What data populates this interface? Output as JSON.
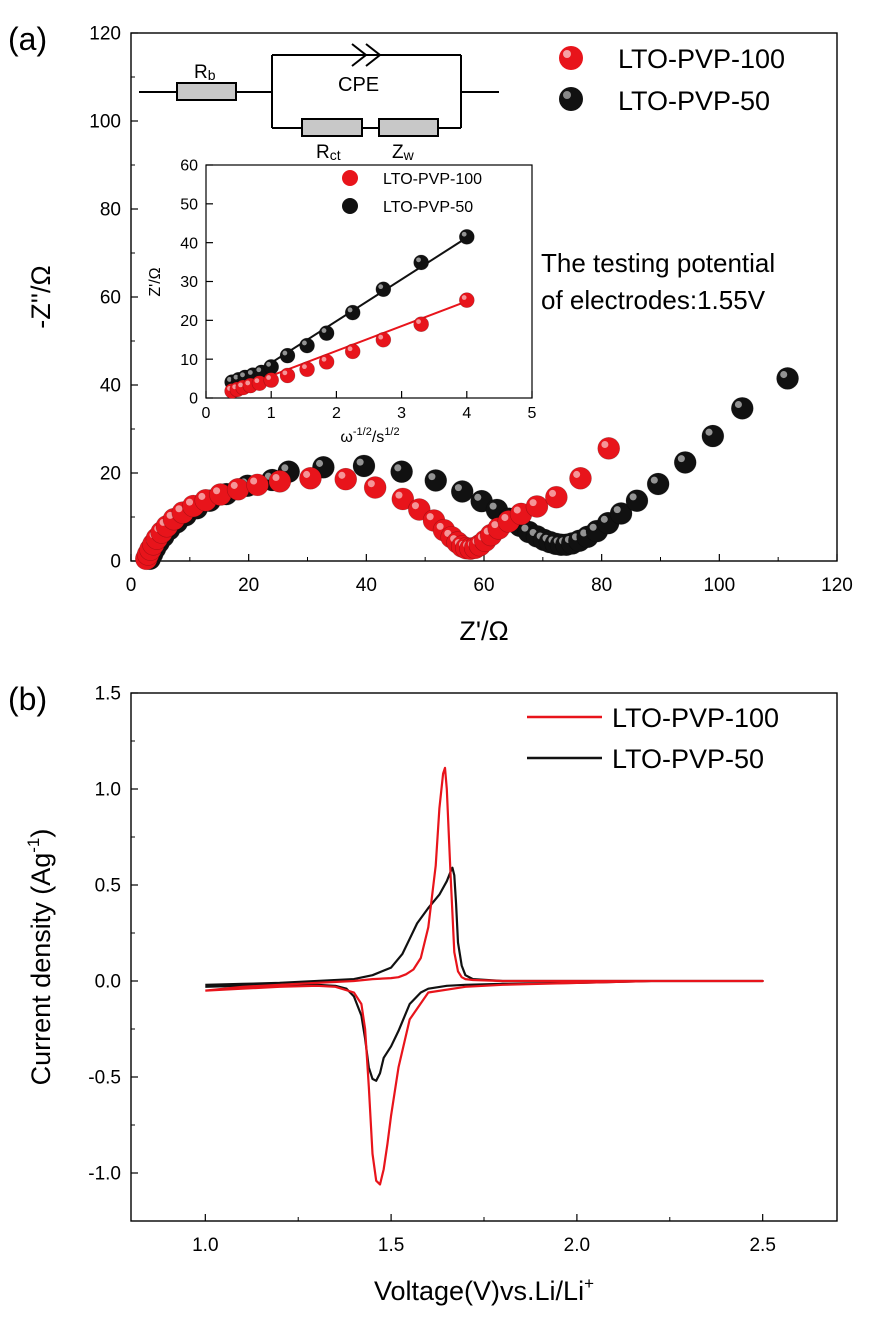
{
  "colors": {
    "red": "#e8141b",
    "black": "#111111",
    "circuit_fill": "#c8c8c8"
  },
  "panel_a": {
    "label": "(a)",
    "note_line1": "The testing potential",
    "note_line2": "of electrodes:1.55V",
    "circuit": {
      "rb": "R",
      "rb_sub": "b",
      "cpe": "CPE",
      "rct": "R",
      "rct_sub": "ct",
      "zw": "Z",
      "zw_sub": "w"
    }
  },
  "panel_b": {
    "label": "(b)"
  },
  "chart_data": [
    {
      "id": "nyquist",
      "type": "scatter",
      "title": "",
      "xlabel": "Z'/Ω",
      "ylabel": "-Z''/Ω",
      "xlim": [
        0,
        120
      ],
      "ylim": [
        0,
        120
      ],
      "xticks": [
        0,
        20,
        40,
        60,
        80,
        100,
        120
      ],
      "yticks": [
        0,
        20,
        40,
        60,
        80,
        100,
        120
      ],
      "xtick_labels": [
        "0",
        "20",
        "40",
        "60",
        "80",
        "100",
        "120"
      ],
      "ytick_labels": [
        "0",
        "20",
        "40",
        "60",
        "80",
        "100",
        "120"
      ],
      "legend": "top-right",
      "series": [
        {
          "name": "LTO-PVP-100",
          "color": "#e8141b",
          "points": [
            [
              2.6,
              0.5
            ],
            [
              2.9,
              1.5
            ],
            [
              3.3,
              2.6
            ],
            [
              3.8,
              3.8
            ],
            [
              4.4,
              5.1
            ],
            [
              5.2,
              6.5
            ],
            [
              6.1,
              7.9
            ],
            [
              7.3,
              9.5
            ],
            [
              8.8,
              11.0
            ],
            [
              10.6,
              12.5
            ],
            [
              12.7,
              13.8
            ],
            [
              15.2,
              15.1
            ],
            [
              18.2,
              16.3
            ],
            [
              21.5,
              17.3
            ],
            [
              25.3,
              18.1
            ],
            [
              30.5,
              18.8
            ],
            [
              36.5,
              18.6
            ],
            [
              41.5,
              16.7
            ],
            [
              46.2,
              14.1
            ],
            [
              49.0,
              11.7
            ],
            [
              51.5,
              9.2
            ],
            [
              53.2,
              7.0
            ],
            [
              54.5,
              5.4
            ],
            [
              55.5,
              4.2
            ],
            [
              56.3,
              3.3
            ],
            [
              57.0,
              2.9
            ],
            [
              57.7,
              2.8
            ],
            [
              58.5,
              3.0
            ],
            [
              59.3,
              3.6
            ],
            [
              60.2,
              4.6
            ],
            [
              61.2,
              5.9
            ],
            [
              62.5,
              7.4
            ],
            [
              64.2,
              9.0
            ],
            [
              66.3,
              10.7
            ],
            [
              69.0,
              12.4
            ],
            [
              72.3,
              14.5
            ],
            [
              76.4,
              18.8
            ],
            [
              81.2,
              25.6
            ]
          ]
        },
        {
          "name": "LTO-PVP-50",
          "color": "#111111",
          "points": [
            [
              3.2,
              0.5
            ],
            [
              3.6,
              1.6
            ],
            [
              4.1,
              2.9
            ],
            [
              4.7,
              4.2
            ],
            [
              5.5,
              5.6
            ],
            [
              6.5,
              7.2
            ],
            [
              7.8,
              8.8
            ],
            [
              9.3,
              10.4
            ],
            [
              11.2,
              12.0
            ],
            [
              13.4,
              13.7
            ],
            [
              16.2,
              15.2
            ],
            [
              19.8,
              17.1
            ],
            [
              24.0,
              18.4
            ],
            [
              26.8,
              20.3
            ],
            [
              32.7,
              21.3
            ],
            [
              39.6,
              21.6
            ],
            [
              46.0,
              20.3
            ],
            [
              51.8,
              18.3
            ],
            [
              56.3,
              15.8
            ],
            [
              59.6,
              13.6
            ],
            [
              62.2,
              11.6
            ],
            [
              64.3,
              9.6
            ],
            [
              66.1,
              8.0
            ],
            [
              67.6,
              6.6
            ],
            [
              69.0,
              5.6
            ],
            [
              70.2,
              4.8
            ],
            [
              71.2,
              4.3
            ],
            [
              72.2,
              3.9
            ],
            [
              73.1,
              3.7
            ],
            [
              74.0,
              3.7
            ],
            [
              75.0,
              4.0
            ],
            [
              76.2,
              4.6
            ],
            [
              77.6,
              5.5
            ],
            [
              79.2,
              6.8
            ],
            [
              81.1,
              8.6
            ],
            [
              83.3,
              10.8
            ],
            [
              86.0,
              13.7
            ],
            [
              89.6,
              17.5
            ],
            [
              94.2,
              22.4
            ],
            [
              98.9,
              28.4
            ],
            [
              103.9,
              34.7
            ],
            [
              111.6,
              41.5
            ]
          ]
        }
      ]
    },
    {
      "id": "inset",
      "type": "scatter",
      "title": "",
      "xlabel": "ω",
      "xlabel_sup1": "-1/2",
      "xlabel_mid": "/s",
      "xlabel_sup2": "1/2",
      "ylabel": "Z'/Ω",
      "xlim": [
        0,
        5
      ],
      "ylim": [
        0,
        60
      ],
      "xticks": [
        0,
        1,
        2,
        3,
        4,
        5
      ],
      "yticks": [
        0,
        10,
        20,
        30,
        40,
        50,
        60
      ],
      "xtick_labels": [
        "0",
        "1",
        "2",
        "3",
        "4",
        "5"
      ],
      "ytick_labels": [
        "0",
        "10",
        "20",
        "30",
        "40",
        "50",
        "60"
      ],
      "legend": "top-right",
      "series": [
        {
          "name": "LTO-PVP-100",
          "color": "#e8141b",
          "points": [
            [
              0.4,
              1.8
            ],
            [
              0.48,
              2.2
            ],
            [
              0.57,
              2.7
            ],
            [
              0.68,
              3.2
            ],
            [
              0.82,
              3.8
            ],
            [
              1.0,
              4.6
            ],
            [
              1.25,
              5.8
            ],
            [
              1.55,
              7.4
            ],
            [
              1.85,
              9.3
            ],
            [
              2.25,
              12.0
            ],
            [
              2.72,
              15.0
            ],
            [
              3.3,
              19.0
            ],
            [
              4.0,
              25.2
            ]
          ],
          "fit": [
            [
              0.4,
              1.9
            ],
            [
              4.0,
              24.9
            ]
          ]
        },
        {
          "name": "LTO-PVP-50",
          "color": "#111111",
          "points": [
            [
              0.4,
              4.1
            ],
            [
              0.5,
              4.7
            ],
            [
              0.6,
              5.3
            ],
            [
              0.72,
              5.9
            ],
            [
              0.85,
              6.6
            ],
            [
              1.0,
              8.0
            ],
            [
              1.25,
              10.9
            ],
            [
              1.55,
              13.5
            ],
            [
              1.85,
              16.7
            ],
            [
              2.25,
              22.0
            ],
            [
              2.72,
              28.0
            ],
            [
              3.3,
              34.9
            ],
            [
              4.0,
              41.5
            ]
          ],
          "fit": [
            [
              0.4,
              2.6
            ],
            [
              4.0,
              41.3
            ]
          ]
        }
      ]
    },
    {
      "id": "cv",
      "type": "line",
      "title": "",
      "xlabel": "Voltage(V)vs.Li/Li",
      "xlabel_sup": "+",
      "ylabel": "Current density (Ag",
      "ylabel_sup": "-1",
      "ylabel_end": ")",
      "xlim": [
        0.8,
        2.7
      ],
      "ylim": [
        -1.25,
        1.5
      ],
      "xticks": [
        1.0,
        1.5,
        2.0,
        2.5
      ],
      "yticks": [
        -1.0,
        -0.5,
        0.0,
        0.5,
        1.0,
        1.5
      ],
      "xtick_labels": [
        "1.0",
        "1.5",
        "2.0",
        "2.5"
      ],
      "ytick_labels": [
        "-1.0",
        "-0.5",
        "0.0",
        "0.5",
        "1.0",
        "1.5"
      ],
      "legend": "top-right",
      "series": [
        {
          "name": "LTO-PVP-100",
          "color": "#e8141b",
          "x": [
            1.0,
            1.1,
            1.2,
            1.3,
            1.35,
            1.4,
            1.42,
            1.43,
            1.44,
            1.45,
            1.46,
            1.47,
            1.48,
            1.49,
            1.5,
            1.52,
            1.55,
            1.6,
            1.7,
            1.8,
            2.0,
            2.2,
            2.4,
            2.5,
            2.45,
            2.3,
            2.0,
            1.8,
            1.72,
            1.7,
            1.69,
            1.68,
            1.67,
            1.66,
            1.65,
            1.645,
            1.64,
            1.63,
            1.62,
            1.6,
            1.58,
            1.56,
            1.54,
            1.52,
            1.5,
            1.45,
            1.4,
            1.3,
            1.2,
            1.1,
            1.0
          ],
          "y": [
            -0.05,
            -0.04,
            -0.03,
            -0.025,
            -0.03,
            -0.06,
            -0.12,
            -0.25,
            -0.55,
            -0.9,
            -1.04,
            -1.06,
            -0.98,
            -0.85,
            -0.7,
            -0.45,
            -0.2,
            -0.06,
            -0.03,
            -0.02,
            -0.01,
            0.0,
            0.0,
            0.0,
            0.0,
            0.0,
            0.0,
            0.0,
            0.005,
            0.01,
            0.02,
            0.05,
            0.15,
            0.55,
            1.0,
            1.11,
            1.08,
            0.9,
            0.6,
            0.28,
            0.12,
            0.06,
            0.035,
            0.02,
            0.015,
            0.01,
            0.0,
            -0.01,
            -0.02,
            -0.03,
            -0.05
          ]
        },
        {
          "name": "LTO-PVP-50",
          "color": "#111111",
          "x": [
            1.0,
            1.1,
            1.2,
            1.3,
            1.35,
            1.38,
            1.4,
            1.42,
            1.43,
            1.44,
            1.45,
            1.46,
            1.47,
            1.48,
            1.5,
            1.52,
            1.55,
            1.58,
            1.6,
            1.65,
            1.7,
            1.8,
            2.0,
            2.2,
            2.4,
            2.5,
            2.45,
            2.3,
            2.0,
            1.8,
            1.72,
            1.7,
            1.69,
            1.68,
            1.675,
            1.67,
            1.665,
            1.66,
            1.65,
            1.63,
            1.6,
            1.57,
            1.55,
            1.53,
            1.5,
            1.45,
            1.4,
            1.3,
            1.2,
            1.1,
            1.0
          ],
          "y": [
            -0.03,
            -0.025,
            -0.022,
            -0.02,
            -0.025,
            -0.04,
            -0.08,
            -0.18,
            -0.3,
            -0.45,
            -0.51,
            -0.52,
            -0.48,
            -0.4,
            -0.34,
            -0.26,
            -0.12,
            -0.06,
            -0.04,
            -0.025,
            -0.02,
            -0.015,
            -0.01,
            0.0,
            0.0,
            0.0,
            0.0,
            0.0,
            0.0,
            0.0,
            0.01,
            0.03,
            0.08,
            0.2,
            0.4,
            0.55,
            0.59,
            0.57,
            0.52,
            0.45,
            0.38,
            0.3,
            0.22,
            0.14,
            0.07,
            0.03,
            0.01,
            0.0,
            -0.01,
            -0.015,
            -0.02
          ]
        }
      ]
    }
  ]
}
